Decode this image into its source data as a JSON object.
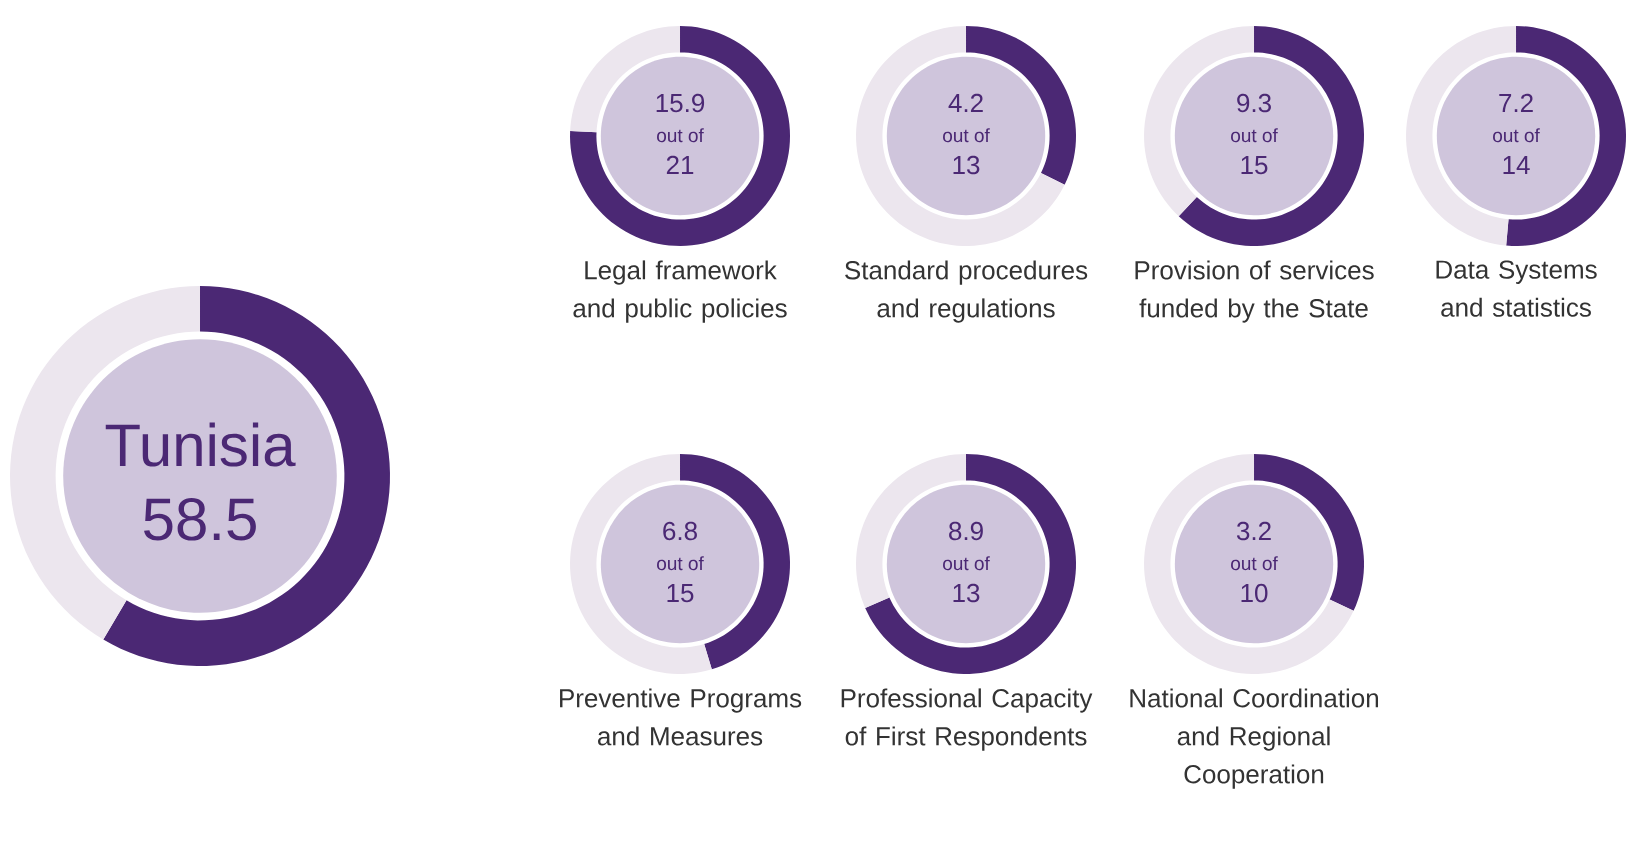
{
  "chart_data": [
    {
      "type": "donut",
      "title": "Tunisia",
      "categories": [
        null,
        null
      ],
      "values": [
        58.5,
        41.5
      ],
      "colors": [
        "#4b2874",
        "#ece6ee"
      ],
      "value_labels": [
        "58.5",
        null
      ]
    },
    {
      "type": "donut",
      "title": "Legal framework and public policies",
      "categories": [
        null,
        null
      ],
      "values": [
        15.9,
        5.1
      ],
      "colors": [
        "#4b2874",
        "#ece6ee"
      ],
      "value_labels": [
        "15.9",
        null
      ],
      "annotations": [
        "out of",
        "21"
      ]
    },
    {
      "type": "donut",
      "title": "Standard procedures and regulations",
      "categories": [
        null,
        null
      ],
      "values": [
        4.2,
        8.8
      ],
      "colors": [
        "#4b2874",
        "#ece6ee"
      ],
      "value_labels": [
        "4.2",
        null
      ],
      "annotations": [
        "out of",
        "13"
      ]
    },
    {
      "type": "donut",
      "title": "Provision of services funded by the State",
      "categories": [
        null,
        null
      ],
      "values": [
        9.3,
        5.7
      ],
      "colors": [
        "#4b2874",
        "#ece6ee"
      ],
      "value_labels": [
        "9.3",
        null
      ],
      "annotations": [
        "out of",
        "15"
      ]
    },
    {
      "type": "donut",
      "title": "Data Systems and statistics",
      "categories": [
        null,
        null
      ],
      "values": [
        7.2,
        6.8
      ],
      "colors": [
        "#4b2874",
        "#ece6ee"
      ],
      "value_labels": [
        "7.2",
        null
      ],
      "annotations": [
        "out of",
        "14"
      ]
    },
    {
      "type": "donut",
      "title": "Preventive Programs and Measures",
      "categories": [
        null,
        null
      ],
      "values": [
        6.8,
        8.2
      ],
      "colors": [
        "#4b2874",
        "#ece6ee"
      ],
      "value_labels": [
        "6.8",
        null
      ],
      "annotations": [
        "out of",
        "15"
      ]
    },
    {
      "type": "donut",
      "title": "Professional Capacity of First Respondents",
      "categories": [
        null,
        null
      ],
      "values": [
        8.9,
        4.1
      ],
      "colors": [
        "#4b2874",
        "#ece6ee"
      ],
      "value_labels": [
        "8.9",
        null
      ],
      "annotations": [
        "out of",
        "13"
      ]
    },
    {
      "type": "donut",
      "title": "National Coordination and Regional Cooperation",
      "categories": [
        null,
        null
      ],
      "values": [
        3.2,
        6.8
      ],
      "colors": [
        "#4b2874",
        "#ece6ee"
      ],
      "value_labels": [
        "3.2",
        null
      ],
      "annotations": [
        "out of",
        "10"
      ]
    }
  ]
}
